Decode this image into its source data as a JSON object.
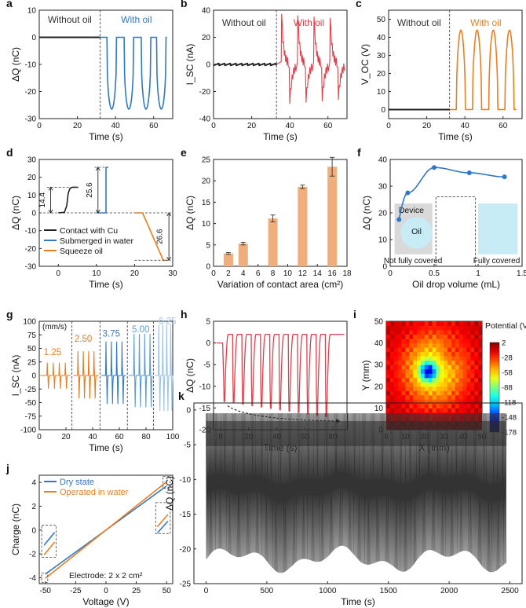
{
  "figure": {
    "panel_letters": [
      "a",
      "b",
      "c",
      "d",
      "e",
      "f",
      "g",
      "h",
      "i",
      "j",
      "k"
    ]
  },
  "colors": {
    "black": "#222222",
    "blue": "#2f78c4",
    "red": "#e0404a",
    "orange": "#ee7d1e",
    "bar_fill": "#f0ae7c",
    "inset_gray": "#d9d9d9",
    "inset_cyan": "#c7ecf6"
  },
  "chart_data": [
    {
      "panel": "a",
      "type": "line",
      "xlabel": "Time (s)",
      "ylabel": "ΔQ (nC)",
      "xlim": [
        0,
        70
      ],
      "ylim": [
        -30,
        10
      ],
      "xticks": [
        0,
        20,
        40,
        60
      ],
      "yticks": [
        -30,
        -20,
        -10,
        0,
        10
      ],
      "divider_x": 32,
      "region_labels": [
        "Without oil",
        "With oil"
      ],
      "series": [
        {
          "segment": "without-oil",
          "x_range": [
            0,
            32
          ],
          "baseline": 0
        },
        {
          "segment": "with-oil",
          "x_range": [
            32,
            67
          ],
          "baseline": 0,
          "peak": -26.5,
          "pulse_starts": [
            35.5,
            44.5,
            53.5,
            61.5
          ]
        }
      ]
    },
    {
      "panel": "b",
      "type": "line",
      "xlabel": "Time (s)",
      "ylabel": "I_SC (nA)",
      "xlim": [
        0,
        70
      ],
      "ylim": [
        -40,
        40
      ],
      "xticks": [
        0,
        20,
        40,
        60
      ],
      "yticks": [
        -40,
        -20,
        0,
        20,
        40
      ],
      "divider_x": 33,
      "region_labels": [
        "Without oil",
        "With oil"
      ],
      "series": [
        {
          "segment": "without-oil",
          "x_range": [
            0,
            33
          ],
          "baseline": 0
        },
        {
          "segment": "with-oil",
          "x_range": [
            33,
            68
          ],
          "positive_peak": 37,
          "negative_peak": -29,
          "pulse_starts": [
            35.5,
            44,
            52.5,
            61
          ]
        }
      ]
    },
    {
      "panel": "c",
      "type": "line",
      "xlabel": "Time (s)",
      "ylabel": "V_OC (V)",
      "xlim": [
        0,
        70
      ],
      "ylim": [
        -5,
        55
      ],
      "xticks": [
        0,
        20,
        40,
        60
      ],
      "yticks": [
        0,
        10,
        20,
        30,
        40,
        50
      ],
      "divider_x": 32,
      "region_labels": [
        "Without oil",
        "With oil"
      ],
      "series": [
        {
          "segment": "without-oil",
          "x_range": [
            0,
            32
          ],
          "baseline": 0
        },
        {
          "segment": "with-oil",
          "x_range": [
            32,
            67
          ],
          "peak": 44,
          "pulse_starts": [
            35.5,
            44,
            52.5,
            61
          ]
        }
      ]
    },
    {
      "panel": "d",
      "type": "line",
      "xlabel": "Time (s)",
      "ylabel": "ΔQ (nC)",
      "xlim": [
        -5,
        30
      ],
      "ylim": [
        -30,
        30
      ],
      "xticks": [
        0,
        10,
        20,
        30
      ],
      "yticks": [
        -30,
        -20,
        -10,
        0,
        10,
        20,
        30
      ],
      "annotations": [
        "14.4",
        "25.6",
        "26.6"
      ],
      "legend": [
        "Contact with Cu",
        "Submerged in water",
        "Squeeze oil"
      ],
      "series": [
        {
          "name": "Contact with Cu",
          "x": [
            0,
            1.6,
            2.2,
            2.6,
            3.0,
            3.6,
            5.2
          ],
          "y": [
            0,
            0.3,
            4,
            11,
            13.6,
            14.4,
            14.4
          ]
        },
        {
          "name": "Submerged in water",
          "x": [
            10.1,
            12.5,
            12.5,
            13.1
          ],
          "y": [
            0,
            0,
            25.6,
            25.6
          ]
        },
        {
          "name": "Squeeze oil",
          "x": [
            20.1,
            22.1,
            27.5,
            28.5
          ],
          "y": [
            0,
            0,
            -26.6,
            -26.6
          ]
        }
      ]
    },
    {
      "panel": "e",
      "type": "bar",
      "xlabel": "Variation of contact area (cm²)",
      "ylabel": "ΔQ (nC)",
      "xlim": [
        0,
        18
      ],
      "ylim": [
        0,
        25
      ],
      "xticks": [
        0,
        2,
        4,
        6,
        8,
        10,
        12,
        14,
        16,
        18
      ],
      "yticks": [
        0,
        5,
        10,
        15,
        20,
        25
      ],
      "x": [
        2,
        4,
        8,
        12,
        16
      ],
      "values": [
        3.0,
        5.3,
        11.2,
        18.6,
        23.3
      ],
      "errors": [
        0.2,
        0.3,
        0.8,
        0.4,
        2.2
      ]
    },
    {
      "panel": "f",
      "type": "line",
      "xlabel": "Oil drop volume (mL)",
      "ylabel": "ΔQ (nC)",
      "xlim": [
        0,
        1.5
      ],
      "ylim": [
        0,
        40
      ],
      "xticks": [
        0.0,
        0.5,
        1.0,
        1.5
      ],
      "yticks": [
        0,
        10,
        20,
        30,
        40
      ],
      "x": [
        0.1,
        0.2,
        0.5,
        0.9,
        1.3
      ],
      "values": [
        17.5,
        27.5,
        37.0,
        35.0,
        33.5
      ],
      "inset_labels": [
        "Device",
        "Oil",
        "Not fully covered",
        "Fully covered"
      ]
    },
    {
      "panel": "g",
      "type": "line",
      "xlabel": "Time (s)",
      "ylabel": "I_SC (nA)",
      "unit_label": "(mm/s)",
      "xlim": [
        0,
        100
      ],
      "ylim": [
        -100,
        100
      ],
      "xticks": [
        0,
        20,
        40,
        60,
        80,
        100
      ],
      "yticks": [
        -100,
        -75,
        -50,
        -25,
        0,
        25,
        50,
        75,
        100
      ],
      "dividers_x": [
        24.5,
        45.5,
        66,
        85.5
      ],
      "speed_labels": [
        "1.25",
        "2.50",
        "3.75",
        "5.00",
        "6.25"
      ],
      "groups": [
        {
          "speed": "1.25",
          "pulse_x": [
            6,
            10.5,
            15,
            19.5
          ],
          "pos": 23,
          "neg": -24
        },
        {
          "speed": "2.50",
          "pulse_x": [
            29,
            33,
            37,
            41
          ],
          "pos": 44,
          "neg": -42
        },
        {
          "speed": "3.75",
          "pulse_x": [
            50,
            54,
            58,
            62
          ],
          "pos": 62,
          "neg": -52
        },
        {
          "speed": "5.00",
          "pulse_x": [
            71,
            75,
            79,
            83
          ],
          "pos": 76,
          "neg": -58
        },
        {
          "speed": "6.25",
          "pulse_x": [
            89.5,
            92.5,
            95.5,
            98.5
          ],
          "pos": 93,
          "neg": -65
        }
      ]
    },
    {
      "panel": "h",
      "type": "line",
      "xlabel": "Time (s)",
      "ylabel": "ΔQ (nC)",
      "xlim": [
        -5,
        90
      ],
      "ylim": [
        -20,
        5
      ],
      "xticks": [
        0,
        20,
        40,
        60,
        80
      ],
      "yticks": [
        -20,
        -15,
        -10,
        -5,
        0,
        5
      ],
      "initial_baseline": 0,
      "plateau": 2,
      "cycle_count": 12,
      "trough_start": -13.5,
      "trough_end": -17,
      "trend_arrow": {
        "x": [
          5,
          85
        ],
        "y": [
          -14.5,
          -18
        ]
      }
    },
    {
      "panel": "i",
      "type": "heatmap",
      "xlabel": "X (mm)",
      "ylabel": "Y (mm)",
      "xlim": [
        0,
        50
      ],
      "ylim": [
        0,
        50
      ],
      "xticks": [
        0,
        10,
        20,
        30,
        40,
        50
      ],
      "yticks": [
        0,
        10,
        20,
        30,
        40,
        50
      ],
      "colorbar_title": "Potential (V)",
      "colorbar_ticks": [
        2,
        -28,
        -58,
        -88,
        -118,
        -148,
        -178
      ],
      "colorbar_range": [
        -178,
        2
      ],
      "min_location": {
        "x": 22,
        "y": 27,
        "value": -178
      }
    },
    {
      "panel": "j",
      "type": "line",
      "xlabel": "Voltage (V)",
      "ylabel": "Charge (nC)",
      "xlim": [
        -55,
        55
      ],
      "ylim": [
        -4.5,
        4.6
      ],
      "xticks": [
        -50,
        -25,
        0,
        25,
        50
      ],
      "yticks": [
        -4,
        -2,
        0,
        2,
        4
      ],
      "note": "Electrode: 2 x 2 cm²",
      "series": [
        {
          "name": "Dry state",
          "x": [
            -50,
            50
          ],
          "y": [
            -3.7,
            3.7
          ]
        },
        {
          "name": "Operated in water",
          "x": [
            -50,
            50
          ],
          "y": [
            -4.05,
            4.05
          ]
        }
      ]
    },
    {
      "panel": "k",
      "type": "line",
      "xlabel": "Time (s)",
      "ylabel": "ΔQ (nC)",
      "xlim": [
        -100,
        2600
      ],
      "ylim": [
        -25,
        1
      ],
      "xticks": [
        0,
        500,
        1000,
        1500,
        2000,
        2500
      ],
      "yticks": [
        -25,
        -20,
        -15,
        -10,
        -5,
        0
      ],
      "x_range": [
        0,
        2470
      ],
      "top": -0.5,
      "trough": -21.5
    }
  ]
}
